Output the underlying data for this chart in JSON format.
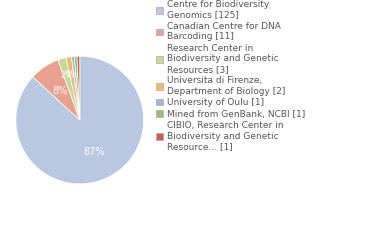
{
  "labels": [
    "Centre for Biodiversity\nGenomics [125]",
    "Canadian Centre for DNA\nBarcoding [11]",
    "Research Center in\nBiodiversity and Genetic\nResources [3]",
    "Universita di Firenze,\nDepartment of Biology [2]",
    "University of Oulu [1]",
    "Mined from GenBank, NCBI [1]",
    "CIBIO, Research Center in\nBiodiversity and Genetic\nResource... [1]"
  ],
  "values": [
    125,
    11,
    3,
    2,
    1,
    1,
    1
  ],
  "colors": [
    "#b8c8e0",
    "#e8a090",
    "#c8d898",
    "#f0b870",
    "#a0b8d8",
    "#90c070",
    "#c86050"
  ],
  "legend_fontsize": 6.5,
  "background_color": "#ffffff",
  "text_color": "#555555"
}
